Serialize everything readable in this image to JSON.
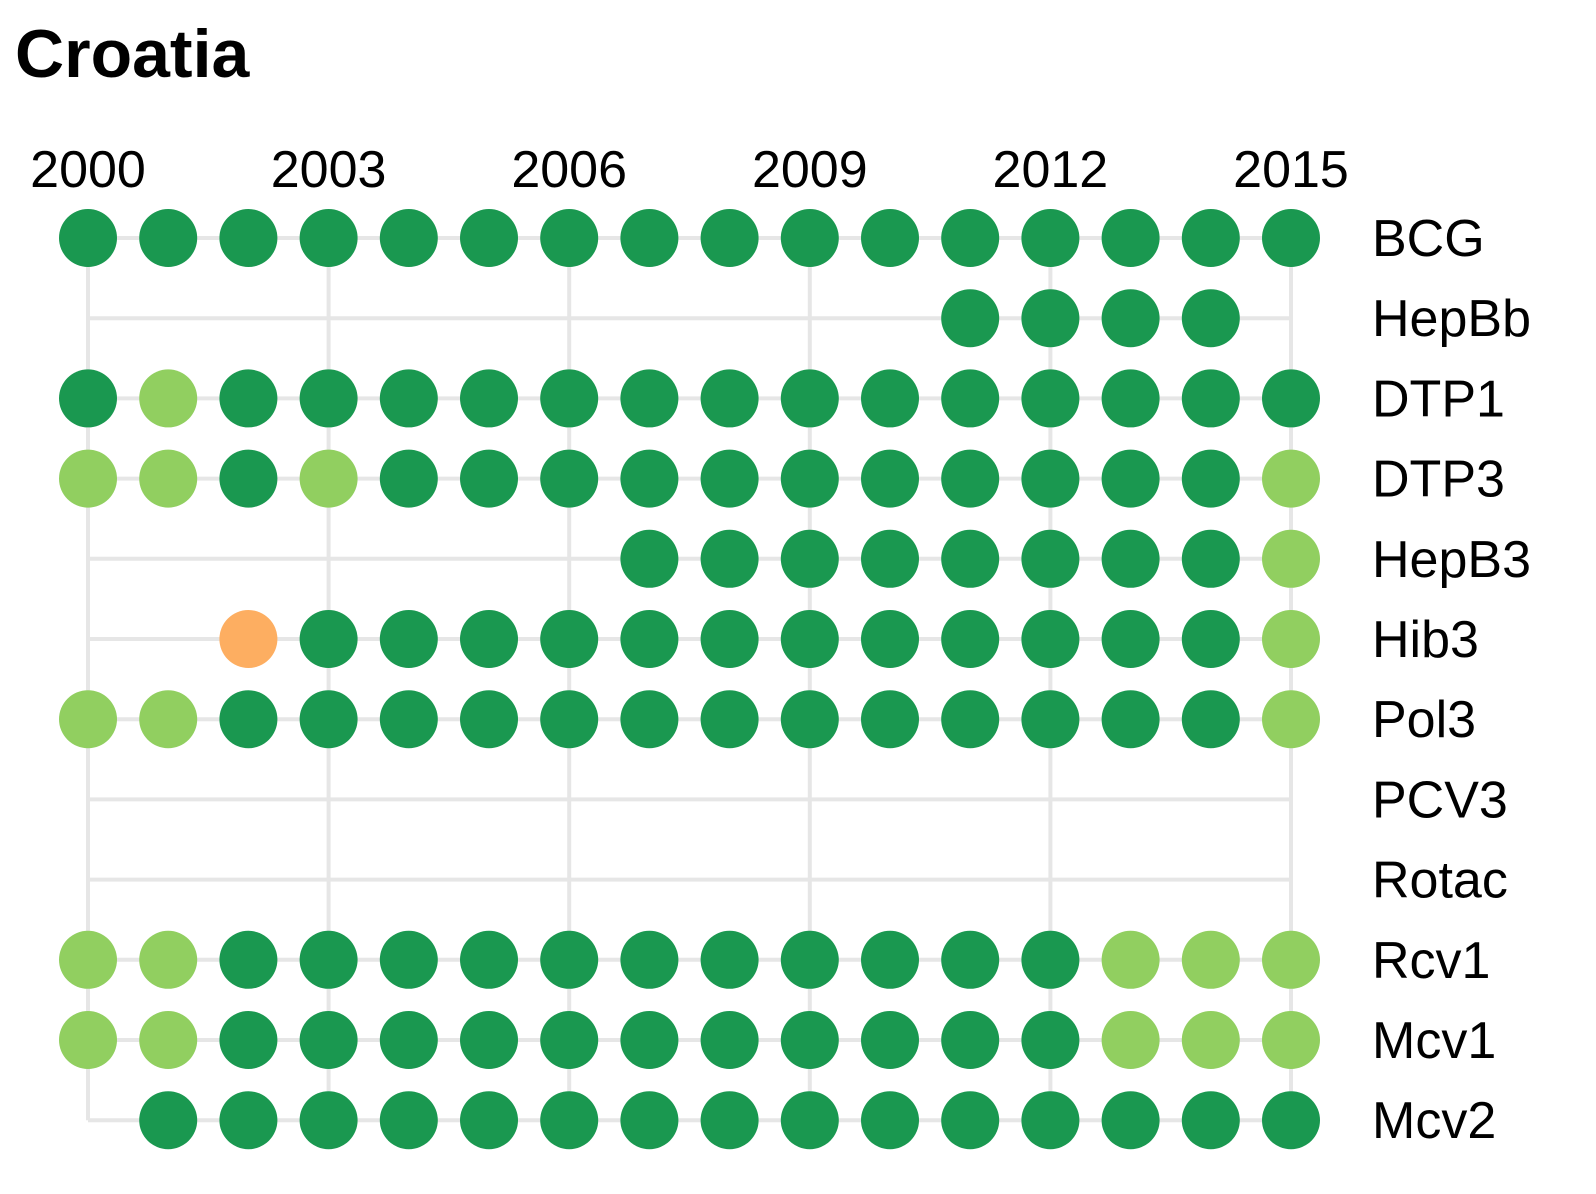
{
  "chart_data": {
    "type": "scatter",
    "title": "Croatia",
    "x_ticks": [
      2000,
      2003,
      2006,
      2009,
      2012,
      2015
    ],
    "years": [
      2000,
      2001,
      2002,
      2003,
      2004,
      2005,
      2006,
      2007,
      2008,
      2009,
      2010,
      2011,
      2012,
      2013,
      2014,
      2015
    ],
    "xlim": [
      2000,
      2015
    ],
    "grid": true,
    "colors": {
      "dark_green": "#1a9850",
      "light_green": "#91cf60",
      "orange": "#fdae61",
      "grid": "#e6e6e6"
    },
    "rows": [
      {
        "name": "BCG",
        "dots": [
          "dark_green",
          "dark_green",
          "dark_green",
          "dark_green",
          "dark_green",
          "dark_green",
          "dark_green",
          "dark_green",
          "dark_green",
          "dark_green",
          "dark_green",
          "dark_green",
          "dark_green",
          "dark_green",
          "dark_green",
          "dark_green"
        ]
      },
      {
        "name": "HepBb",
        "dots": [
          null,
          null,
          null,
          null,
          null,
          null,
          null,
          null,
          null,
          null,
          null,
          "dark_green",
          "dark_green",
          "dark_green",
          "dark_green",
          null
        ]
      },
      {
        "name": "DTP1",
        "dots": [
          "dark_green",
          "light_green",
          "dark_green",
          "dark_green",
          "dark_green",
          "dark_green",
          "dark_green",
          "dark_green",
          "dark_green",
          "dark_green",
          "dark_green",
          "dark_green",
          "dark_green",
          "dark_green",
          "dark_green",
          "dark_green"
        ]
      },
      {
        "name": "DTP3",
        "dots": [
          "light_green",
          "light_green",
          "dark_green",
          "light_green",
          "dark_green",
          "dark_green",
          "dark_green",
          "dark_green",
          "dark_green",
          "dark_green",
          "dark_green",
          "dark_green",
          "dark_green",
          "dark_green",
          "dark_green",
          "light_green"
        ]
      },
      {
        "name": "HepB3",
        "dots": [
          null,
          null,
          null,
          null,
          null,
          null,
          null,
          "dark_green",
          "dark_green",
          "dark_green",
          "dark_green",
          "dark_green",
          "dark_green",
          "dark_green",
          "dark_green",
          "light_green"
        ]
      },
      {
        "name": "Hib3",
        "dots": [
          null,
          null,
          "orange",
          "dark_green",
          "dark_green",
          "dark_green",
          "dark_green",
          "dark_green",
          "dark_green",
          "dark_green",
          "dark_green",
          "dark_green",
          "dark_green",
          "dark_green",
          "dark_green",
          "light_green"
        ]
      },
      {
        "name": "Pol3",
        "dots": [
          "light_green",
          "light_green",
          "dark_green",
          "dark_green",
          "dark_green",
          "dark_green",
          "dark_green",
          "dark_green",
          "dark_green",
          "dark_green",
          "dark_green",
          "dark_green",
          "dark_green",
          "dark_green",
          "dark_green",
          "light_green"
        ]
      },
      {
        "name": "PCV3",
        "dots": [
          null,
          null,
          null,
          null,
          null,
          null,
          null,
          null,
          null,
          null,
          null,
          null,
          null,
          null,
          null,
          null
        ]
      },
      {
        "name": "Rotac",
        "dots": [
          null,
          null,
          null,
          null,
          null,
          null,
          null,
          null,
          null,
          null,
          null,
          null,
          null,
          null,
          null,
          null
        ]
      },
      {
        "name": "Rcv1",
        "dots": [
          "light_green",
          "light_green",
          "dark_green",
          "dark_green",
          "dark_green",
          "dark_green",
          "dark_green",
          "dark_green",
          "dark_green",
          "dark_green",
          "dark_green",
          "dark_green",
          "dark_green",
          "light_green",
          "light_green",
          "light_green"
        ]
      },
      {
        "name": "Mcv1",
        "dots": [
          "light_green",
          "light_green",
          "dark_green",
          "dark_green",
          "dark_green",
          "dark_green",
          "dark_green",
          "dark_green",
          "dark_green",
          "dark_green",
          "dark_green",
          "dark_green",
          "dark_green",
          "light_green",
          "light_green",
          "light_green"
        ]
      },
      {
        "name": "Mcv2",
        "dots": [
          null,
          "dark_green",
          "dark_green",
          "dark_green",
          "dark_green",
          "dark_green",
          "dark_green",
          "dark_green",
          "dark_green",
          "dark_green",
          "dark_green",
          "dark_green",
          "dark_green",
          "dark_green",
          "dark_green",
          "dark_green"
        ]
      }
    ]
  }
}
